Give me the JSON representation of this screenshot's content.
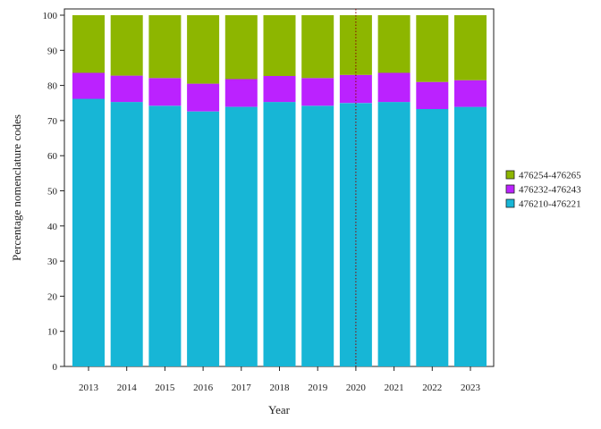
{
  "chart_data": {
    "type": "bar",
    "stacked": true,
    "xlabel": "Year",
    "ylabel": "Percentage nomenclature codes",
    "categories": [
      "2013",
      "2014",
      "2015",
      "2016",
      "2017",
      "2018",
      "2019",
      "2020",
      "2021",
      "2022",
      "2023"
    ],
    "ylim": [
      0,
      100
    ],
    "yticks": [
      0,
      10,
      20,
      30,
      40,
      50,
      60,
      70,
      80,
      90,
      100
    ],
    "grid": false,
    "legend_position": "right",
    "reference_line": {
      "x": "2020",
      "color": "#8b0000",
      "style": "dotted"
    },
    "series": [
      {
        "name": "476210-476221",
        "color": "#17b6d6",
        "values": [
          76.2,
          75.3,
          74.2,
          72.6,
          73.9,
          75.3,
          74.2,
          75.0,
          75.3,
          73.3,
          73.9
        ]
      },
      {
        "name": "476232-476243",
        "color": "#bb22ff",
        "values": [
          7.4,
          7.5,
          7.9,
          7.9,
          7.9,
          7.4,
          7.9,
          8.0,
          8.3,
          7.7,
          7.6
        ]
      },
      {
        "name": "476254-476265",
        "color": "#8db600",
        "values": [
          16.4,
          17.2,
          17.9,
          19.5,
          18.2,
          17.3,
          17.9,
          17.0,
          16.4,
          19.0,
          18.5
        ]
      }
    ]
  }
}
